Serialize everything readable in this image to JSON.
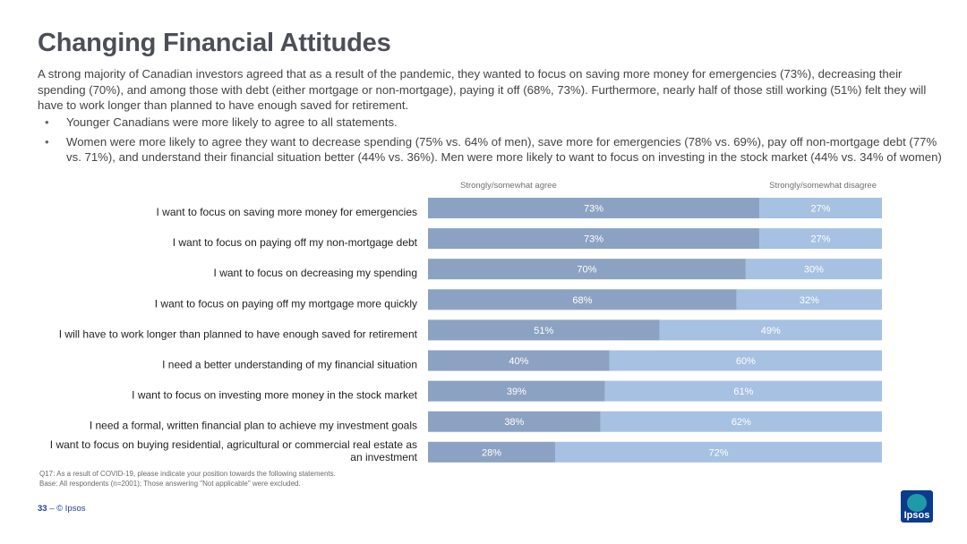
{
  "header": {
    "title": "Changing Financial Attitudes",
    "intro": "A strong majority of Canadian investors agreed that as a result of the pandemic, they wanted to focus on saving more money for emergencies (73%), decreasing their spending (70%), and among those with debt (either mortgage or non-mortgage), paying it off (68%, 73%).  Furthermore, nearly half of those still working (51%) felt they will have to work longer than planned to have enough saved for retirement.",
    "bullets": [
      "Younger Canadians were more likely to agree to all statements.",
      "Women were more likely to agree they want to decrease spending (75% vs. 64% of men), save more for emergencies (78% vs. 69%), pay off non-mortgage debt (77% vs. 71%), and understand their financial situation better (44% vs. 36%). Men were more likely to want to focus on investing in the stock market (44% vs. 34% of women)"
    ]
  },
  "chart_data": {
    "type": "bar",
    "orientation": "horizontal",
    "stacked": true,
    "categories": [
      "I want to focus on saving more money for emergencies",
      "I want to focus on paying off my non-mortgage debt",
      "I want to focus on decreasing my spending",
      "I want to focus on paying off my mortgage more quickly",
      "I will have to work longer than planned to have enough saved for retirement",
      "I need a better understanding of my financial situation",
      "I want to focus on investing more money in the stock market",
      "I need a formal, written financial plan to achieve my investment goals",
      "I want to focus on buying residential, agricultural or commercial real estate as an investment"
    ],
    "series": [
      {
        "name": "Strongly/somewhat agree",
        "values": [
          73,
          73,
          70,
          68,
          51,
          40,
          39,
          38,
          28
        ],
        "color": "#8ca2c2"
      },
      {
        "name": "Strongly/somewhat disagree",
        "values": [
          27,
          27,
          30,
          32,
          49,
          60,
          61,
          62,
          72
        ],
        "color": "#a6c1e2"
      }
    ],
    "xlim": [
      0,
      100
    ],
    "value_suffix": "%",
    "legend_position": "top"
  },
  "notes": [
    "Q17: As a result of COVID-19, please indicate your position towards the following statements.",
    "Base: All respondents (n=2001); Those answering \"Not applicable\" were excluded."
  ],
  "footer": {
    "page": "33",
    "separator": " –  ",
    "copyright": "© Ipsos"
  },
  "logo": {
    "text": "Ipsos"
  }
}
